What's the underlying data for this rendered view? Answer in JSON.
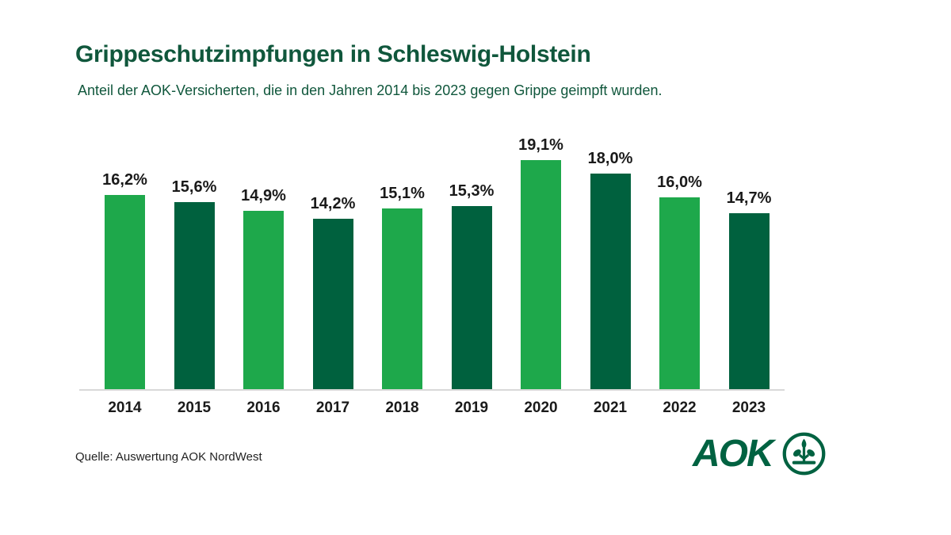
{
  "header": {
    "title": "Grippeschutzimpfungen in Schleswig-Holstein",
    "subtitle": "Anteil der AOK-Versicherten, die in den Jahren 2014 bis 2023 gegen Grippe geimpft wurden."
  },
  "chart_data": {
    "type": "bar",
    "title": "Grippeschutzimpfungen in Schleswig-Holstein",
    "subtitle": "Anteil der AOK-Versicherten, die in den Jahren 2014 bis 2023 gegen Grippe geimpft wurden.",
    "categories": [
      "2014",
      "2015",
      "2016",
      "2017",
      "2018",
      "2019",
      "2020",
      "2021",
      "2022",
      "2023"
    ],
    "values": [
      16.2,
      15.6,
      14.9,
      14.2,
      15.1,
      15.3,
      19.1,
      18.0,
      16.0,
      14.7
    ],
    "value_labels": [
      "16,2%",
      "15,6%",
      "14,9%",
      "14,2%",
      "15,1%",
      "15,3%",
      "19,1%",
      "18,0%",
      "16,0%",
      "14,7%"
    ],
    "xlabel": "",
    "ylabel": "",
    "ylim": [
      0,
      20
    ],
    "grid": false,
    "legend": null,
    "bar_colors_alternate": [
      "#1EA84B",
      "#00613E"
    ]
  },
  "colors": {
    "title_green": "#10573C",
    "bar_light": "#1EA84B",
    "bar_dark": "#00613E",
    "label_black": "#1A1A1A",
    "axis_line": "#D9D9D9",
    "logo_green": "#006241"
  },
  "footer": {
    "source": "Quelle: Auswertung AOK NordWest",
    "logo_text": "AOK",
    "logo_icon": "aok-tree-icon"
  }
}
